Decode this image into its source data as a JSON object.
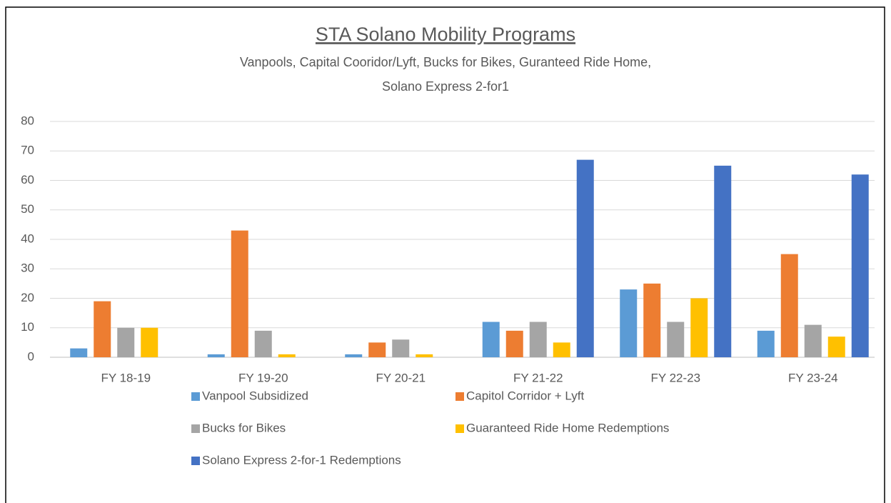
{
  "chart_data": {
    "type": "bar",
    "title": "STA Solano Mobility Programs",
    "subtitle": [
      "Vanpools, Capital Cooridor/Lyft, Bucks for Bikes, Guranteed Ride Home,",
      "Solano Express 2-for1"
    ],
    "categories": [
      "FY 18-19",
      "FY 19-20",
      "FY 20-21",
      "FY 21-22",
      "FY 22-23",
      "FY 23-24"
    ],
    "series": [
      {
        "name": "Vanpool Subsidized",
        "color": "#5b9bd5",
        "values": [
          3,
          1,
          1,
          12,
          23,
          9
        ]
      },
      {
        "name": "Capitol Corridor + Lyft",
        "color": "#ed7d31",
        "values": [
          19,
          43,
          5,
          9,
          25,
          35
        ]
      },
      {
        "name": "Bucks for Bikes",
        "color": "#a5a5a5",
        "values": [
          10,
          9,
          6,
          12,
          12,
          11
        ]
      },
      {
        "name": "Guaranteed Ride Home Redemptions",
        "color": "#ffc000",
        "values": [
          10,
          1,
          1,
          5,
          20,
          7
        ]
      },
      {
        "name": "Solano Express 2-for-1 Redemptions",
        "color": "#4472c4",
        "values": [
          null,
          null,
          null,
          67,
          65,
          62
        ]
      }
    ],
    "ylim": [
      0,
      80
    ],
    "yticks": [
      0,
      10,
      20,
      30,
      40,
      50,
      60,
      70,
      80
    ],
    "grid": true,
    "legend": "bottom"
  }
}
